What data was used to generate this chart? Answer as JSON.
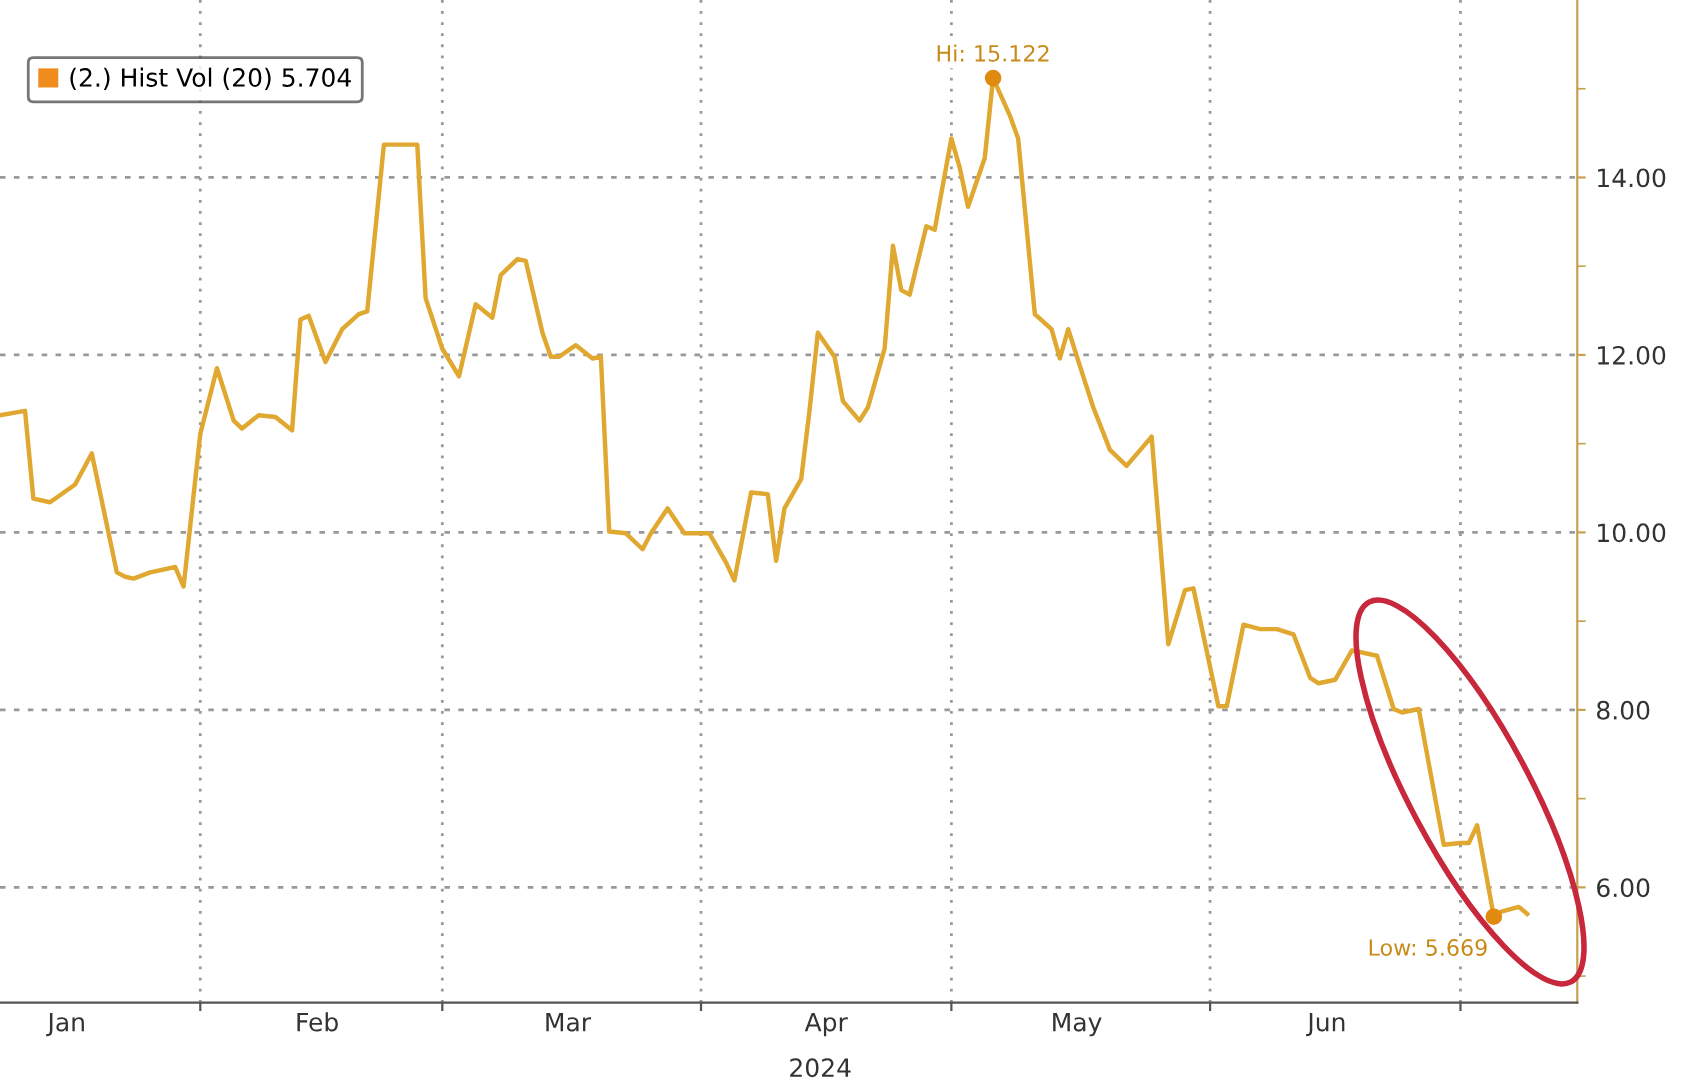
{
  "chart_data": {
    "type": "line",
    "xlabel": "2024",
    "x": [
      "2024-01-08",
      "2024-01-11",
      "2024-01-12",
      "2024-01-14",
      "2024-01-17",
      "2024-01-19",
      "2024-01-22",
      "2024-01-23",
      "2024-01-24",
      "2024-01-26",
      "2024-01-29",
      "2024-01-30",
      "2024-02-01",
      "2024-02-03",
      "2024-02-05",
      "2024-02-06",
      "2024-02-08",
      "2024-02-10",
      "2024-02-12",
      "2024-02-13",
      "2024-02-14",
      "2024-02-16",
      "2024-02-18",
      "2024-02-20",
      "2024-02-21",
      "2024-02-23",
      "2024-02-27",
      "2024-02-28",
      "2024-03-01",
      "2024-03-03",
      "2024-03-05",
      "2024-03-07",
      "2024-03-08",
      "2024-03-10",
      "2024-03-11",
      "2024-03-13",
      "2024-03-14",
      "2024-03-15",
      "2024-03-17",
      "2024-03-19",
      "2024-03-20",
      "2024-03-21",
      "2024-03-23",
      "2024-03-25",
      "2024-03-26",
      "2024-03-28",
      "2024-03-30",
      "2024-04-02",
      "2024-04-04",
      "2024-04-05",
      "2024-04-07",
      "2024-04-09",
      "2024-04-10",
      "2024-04-11",
      "2024-04-13",
      "2024-04-14",
      "2024-04-15",
      "2024-04-17",
      "2024-04-18",
      "2024-04-20",
      "2024-04-21",
      "2024-04-23",
      "2024-04-24",
      "2024-04-25",
      "2024-04-26",
      "2024-04-28",
      "2024-04-29",
      "2024-05-01",
      "2024-05-02",
      "2024-05-03",
      "2024-05-05",
      "2024-05-06",
      "2024-05-08",
      "2024-05-09",
      "2024-05-11",
      "2024-05-13",
      "2024-05-14",
      "2024-05-15",
      "2024-05-17",
      "2024-05-18",
      "2024-05-20",
      "2024-05-22",
      "2024-05-25",
      "2024-05-27",
      "2024-05-29",
      "2024-05-30",
      "2024-06-02",
      "2024-06-03",
      "2024-06-05",
      "2024-06-07",
      "2024-06-09",
      "2024-06-11",
      "2024-06-13",
      "2024-06-14",
      "2024-06-16",
      "2024-06-18",
      "2024-06-21",
      "2024-06-23",
      "2024-06-24",
      "2024-06-26",
      "2024-06-29",
      "2024-07-01",
      "2024-07-02",
      "2024-07-03",
      "2024-07-05",
      "2024-07-06",
      "2024-07-08",
      "2024-07-09"
    ],
    "series": [
      {
        "name": "(2.) Hist Vol (20) 5.704",
        "color": "#e0a830",
        "values": [
          11.32,
          11.37,
          10.38,
          10.34,
          10.54,
          10.89,
          9.55,
          9.5,
          9.48,
          9.55,
          9.61,
          9.39,
          11.11,
          11.85,
          11.26,
          11.17,
          11.32,
          11.3,
          11.15,
          12.4,
          12.44,
          11.92,
          12.29,
          12.46,
          12.49,
          14.37,
          14.37,
          12.64,
          12.07,
          11.76,
          12.57,
          12.42,
          12.9,
          13.08,
          13.06,
          12.25,
          11.98,
          11.98,
          12.11,
          11.96,
          11.98,
          10.01,
          9.99,
          9.81,
          9.99,
          10.27,
          9.99,
          9.99,
          9.66,
          9.46,
          10.45,
          10.43,
          9.68,
          10.27,
          10.6,
          11.37,
          12.25,
          11.98,
          11.48,
          11.26,
          11.41,
          12.07,
          13.23,
          12.73,
          12.68,
          13.45,
          13.41,
          14.44,
          14.11,
          13.67,
          14.22,
          15.12,
          14.7,
          14.44,
          12.46,
          12.29,
          11.96,
          12.29,
          11.7,
          11.41,
          10.93,
          10.75,
          11.08,
          8.74,
          9.35,
          9.37,
          8.04,
          8.04,
          8.96,
          8.91,
          8.91,
          8.85,
          8.36,
          8.3,
          8.34,
          8.67,
          8.61,
          8.01,
          7.97,
          8.01,
          6.48,
          6.5,
          6.5,
          6.7,
          5.669,
          5.73,
          5.78,
          5.7
        ]
      }
    ],
    "annotations": [
      {
        "text": "Hi: 15.122",
        "x": "2024-05-06",
        "y": 15.12
      },
      {
        "text": "Low: 5.669",
        "x": "2024-07-05",
        "y": 5.669
      }
    ],
    "xlim": [
      "2024-01-08",
      "2024-07-15"
    ],
    "xticks": [
      {
        "value": "2024-01-16",
        "label": "Jan"
      },
      {
        "value": "2024-02-01",
        "label": null
      },
      {
        "value": "2024-02-15",
        "label": "Feb"
      },
      {
        "value": "2024-03-01",
        "label": null
      },
      {
        "value": "2024-03-16",
        "label": "Mar"
      },
      {
        "value": "2024-04-01",
        "label": null
      },
      {
        "value": "2024-04-16",
        "label": "Apr"
      },
      {
        "value": "2024-05-01",
        "label": null
      },
      {
        "value": "2024-05-16",
        "label": "May"
      },
      {
        "value": "2024-06-01",
        "label": null
      },
      {
        "value": "2024-06-15",
        "label": "Jun"
      },
      {
        "value": "2024-07-01",
        "label": null
      }
    ],
    "ylim": [
      4.7,
      16
    ],
    "yticks": [
      {
        "value": 5,
        "label": null
      },
      {
        "value": 6,
        "label": "6.00"
      },
      {
        "value": 7,
        "label": null
      },
      {
        "value": 8,
        "label": "8.00"
      },
      {
        "value": 9,
        "label": null
      },
      {
        "value": 10,
        "label": "10.00"
      },
      {
        "value": 11,
        "label": null
      },
      {
        "value": 12,
        "label": "12.00"
      },
      {
        "value": 13,
        "label": null
      },
      {
        "value": 14,
        "label": "14.00"
      },
      {
        "value": 15,
        "label": null
      }
    ],
    "grid": true,
    "legend": "top left",
    "line_style": "solid",
    "marker": "none"
  }
}
